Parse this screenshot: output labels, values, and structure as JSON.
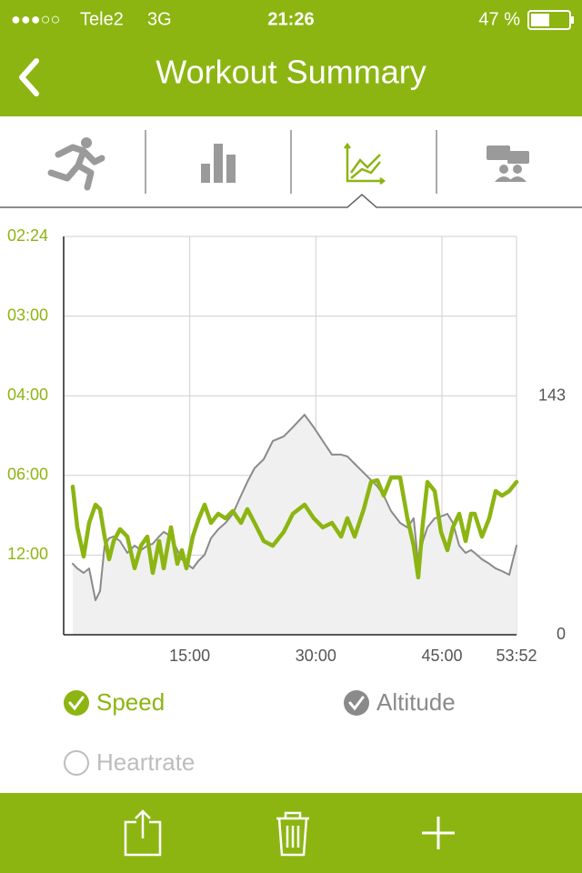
{
  "status_bar": {
    "signal": "●●●○○",
    "carrier": "Tele2",
    "network": "3G",
    "time": "21:26",
    "battery": "47 %"
  },
  "header": {
    "title": "Workout Summary"
  },
  "chart_data": {
    "type": "line",
    "x": [
      1.08,
      1.62,
      2.38,
      3.03,
      3.79,
      4.33,
      4.87,
      5.41,
      5.95,
      6.71,
      7.57,
      8.44,
      9.19,
      9.95,
      10.6,
      11.36,
      11.9,
      12.76,
      13.52,
      14.06,
      14.6,
      15.36,
      16.01,
      16.77,
      17.52,
      18.39,
      19.25,
      20.12,
      21.09,
      21.85,
      22.71,
      23.8,
      24.88,
      26.18,
      27.26,
      28.66,
      29.75,
      30.83,
      31.91,
      33.0,
      33.75,
      34.61,
      35.7,
      36.56,
      37.32,
      38.08,
      38.94,
      40.02,
      40.89,
      41.64,
      42.18,
      42.73,
      43.27,
      44.13,
      44.89,
      45.65,
      46.3,
      47.05,
      47.81,
      48.46,
      48.89,
      49.76,
      50.62,
      51.38,
      52.14,
      53.0,
      53.87
    ],
    "xlim": [
      0,
      53.87
    ],
    "xticks": [
      {
        "value": 15,
        "label": "15:00"
      },
      {
        "value": 30,
        "label": "30:00"
      },
      {
        "value": 45,
        "label": "45:00"
      },
      {
        "value": 53.87,
        "label": "53:52"
      }
    ],
    "ylim": [
      0,
      25
    ],
    "yticks": [
      {
        "value": 5,
        "label": "12:00"
      },
      {
        "value": 10,
        "label": "06:00"
      },
      {
        "value": 15,
        "label": "04:00"
      },
      {
        "value": 20,
        "label": "03:00"
      },
      {
        "value": 25,
        "label": "02:24"
      }
    ],
    "y2lim": [
      0,
      239
    ],
    "y2ticks": [
      0,
      143
    ],
    "grid": true,
    "series": [
      {
        "name": "Speed",
        "color": "#8cb512",
        "checked": true,
        "values": [
          9.3,
          6.74,
          4.91,
          7.02,
          8.16,
          7.88,
          6.16,
          4.74,
          5.88,
          6.62,
          6.16,
          4.17,
          5.59,
          6.16,
          3.88,
          5.88,
          4.17,
          6.74,
          4.45,
          5.31,
          4.17,
          6.16,
          7.19,
          8.16,
          7.02,
          7.59,
          7.31,
          7.76,
          7.02,
          7.88,
          7.02,
          5.88,
          5.59,
          6.45,
          7.59,
          8.16,
          7.31,
          6.74,
          7.02,
          6.16,
          7.31,
          6.16,
          7.88,
          9.59,
          9.7,
          8.73,
          9.87,
          9.87,
          7.31,
          5.59,
          3.6,
          7.02,
          9.59,
          9.02,
          6.45,
          5.31,
          6.74,
          7.59,
          5.88,
          7.59,
          7.59,
          6.16,
          7.31,
          9.02,
          8.73,
          9.02,
          9.59
        ]
      },
      {
        "name": "Altitude",
        "color": "#8a8a8a",
        "axis": "y2",
        "fill": "#f0f0f0",
        "checked": true,
        "values": [
          42.6,
          39.8,
          37.1,
          39.8,
          20.7,
          26.2,
          53.5,
          57.9,
          59.0,
          56.2,
          49.1,
          53.5,
          50.8,
          53.5,
          54.6,
          59.0,
          61.7,
          59.0,
          50.8,
          45.3,
          42.6,
          39.8,
          44.2,
          48.0,
          57.9,
          63.3,
          67.1,
          72.6,
          83.5,
          91.7,
          99.9,
          105.3,
          116.3,
          119.0,
          124.5,
          132.0,
          124.5,
          116.3,
          108.1,
          108.1,
          107.0,
          102.6,
          97.2,
          92.8,
          89.0,
          83.5,
          74.2,
          67.1,
          64.4,
          69.9,
          42.6,
          56.2,
          64.4,
          69.9,
          71.0,
          72.6,
          67.1,
          53.5,
          49.1,
          50.8,
          49.1,
          45.3,
          42.6,
          39.8,
          38.2,
          36.0,
          53.5
        ]
      }
    ]
  },
  "extra_legend": [
    {
      "label": "Heartrate",
      "checked": false
    }
  ]
}
